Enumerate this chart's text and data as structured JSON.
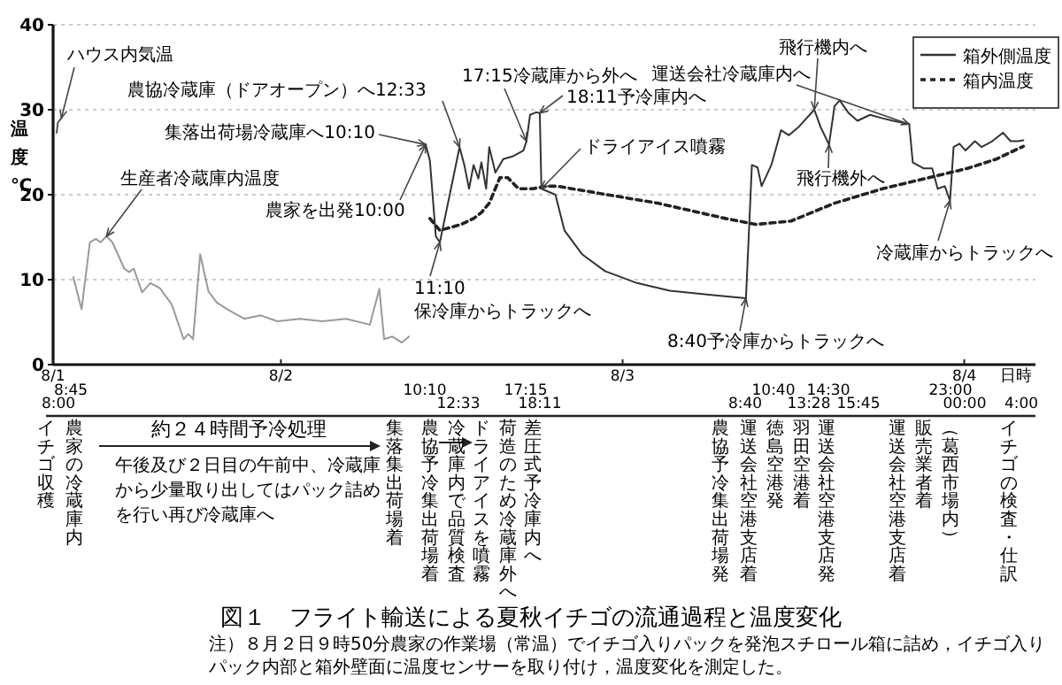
{
  "chart_data": {
    "type": "line",
    "title": "図１　フライト輸送による夏秋イチゴの流通過程と温度変化",
    "xlabel": "日時",
    "ylabel": "温度℃",
    "xlim": [
      "--08-01T08:00",
      "--08-04T05:00"
    ],
    "ylim": [
      0,
      40
    ],
    "yticks": [
      0,
      10,
      20,
      30,
      40
    ],
    "xticks": [
      {
        "value": "--08-01T08:00",
        "label": "8/1"
      },
      {
        "value": "--08-02T00:00",
        "label": "8/2"
      },
      {
        "value": "--08-03T00:00",
        "label": "8/3"
      },
      {
        "value": "--08-04T00:00",
        "label": "8/4"
      }
    ],
    "grid": "y",
    "legend": "top right",
    "series": [
      {
        "name": "箱外側温度",
        "color": "#333333",
        "line_style": "solid",
        "x": [
          "--08-02T10:10",
          "--08-02T10:28",
          "--08-02T10:53",
          "--08-02T11:10",
          "--08-02T12:33",
          "--08-02T12:53",
          "--08-02T13:13",
          "--08-02T13:32",
          "--08-02T13:52",
          "--08-02T14:05",
          "--08-02T14:25",
          "--08-02T14:38",
          "--08-02T15:04",
          "--08-02T15:37",
          "--08-02T16:16",
          "--08-02T17:02",
          "--08-02T17:15",
          "--08-02T17:30",
          "--08-02T17:56",
          "--08-02T18:11",
          "--08-02T18:18",
          "--08-02T19:17",
          "--08-02T19:55",
          "--08-02T21:09",
          "--08-02T22:46",
          "--08-03T01:01",
          "--08-03T03:19",
          "--08-03T06:13",
          "--08-03T08:40",
          "--08-03T09:05",
          "--08-03T09:29",
          "--08-03T09:46",
          "--08-03T10:27",
          "--08-03T11:08",
          "--08-03T11:41",
          "--08-03T12:23",
          "--08-03T13:28",
          "--08-03T13:54",
          "--08-03T14:30",
          "--08-03T14:53",
          "--08-03T15:15",
          "--08-03T15:53",
          "--08-03T16:30",
          "--08-03T17:23",
          "--08-03T18:15",
          "--08-03T19:00",
          "--08-03T20:08",
          "--08-03T20:23",
          "--08-03T21:08",
          "--08-03T21:45",
          "--08-03T22:08",
          "--08-03T22:38",
          "--08-03T23:00",
          "--08-03T23:15",
          "--08-03T23:40",
          "--08-04T00:05",
          "--08-04T00:45",
          "--08-04T01:13",
          "--08-04T01:58",
          "--08-04T02:43",
          "--08-04T03:15",
          "--08-04T03:47",
          "--08-04T04:09"
        ],
        "values": [
          25.9,
          24,
          15.1,
          14.4,
          25.6,
          23.5,
          20.7,
          23.5,
          21.9,
          23.8,
          20.7,
          25.6,
          22.6,
          24.2,
          24.5,
          25.2,
          26.3,
          29.4,
          29.7,
          29.6,
          20.7,
          20,
          15.8,
          13,
          11,
          9.6,
          8.7,
          8.2,
          7.8,
          23.5,
          23.2,
          21,
          23.5,
          27.6,
          27,
          28,
          30,
          28,
          25.9,
          30.4,
          31.1,
          29.6,
          28.7,
          29.4,
          29,
          28.7,
          28.3,
          23.8,
          23.1,
          23.1,
          20.7,
          21,
          19.3,
          25.6,
          26,
          25.2,
          26.3,
          25.6,
          26.3,
          27.3,
          26.3,
          26.3,
          26.4
        ]
      },
      {
        "name": "箱内温度",
        "color": "#222222",
        "line_style": "dashed",
        "x": [
          "--08-02T10:28",
          "--08-02T11:10",
          "--08-02T12:40",
          "--08-02T13:32",
          "--08-02T14:05",
          "--08-02T14:38",
          "--08-02T15:23",
          "--08-02T15:56",
          "--08-02T16:42",
          "--08-02T17:40",
          "--08-02T18:41",
          "--08-02T19:25",
          "--08-02T21:53",
          "--08-03T02:28",
          "--08-03T07:14",
          "--08-03T09:22",
          "--08-03T11:50",
          "--08-03T14:53",
          "--08-03T18:15",
          "--08-03T21:30",
          "--08-04T00:14",
          "--08-04T02:16",
          "--08-04T04:09"
        ],
        "values": [
          17.2,
          15.8,
          16.5,
          17.2,
          17.9,
          19,
          22,
          22,
          20.7,
          20.7,
          21,
          21,
          20.3,
          19,
          17.2,
          16.5,
          16.9,
          19,
          20.7,
          22,
          23.1,
          24.2,
          25.7
        ]
      },
      {
        "color": "#9a9a9a",
        "line_style": "solid",
        "x": [
          "--08-01T09:25",
          "--08-01T10:00",
          "--08-01T10:35",
          "--08-01T11:00",
          "--08-01T11:20",
          "--08-01T11:45",
          "--08-01T12:10",
          "--08-01T13:00",
          "--08-01T13:20",
          "--08-01T13:40",
          "--08-01T14:15",
          "--08-01T14:50",
          "--08-01T15:30",
          "--08-01T16:20",
          "--08-01T17:10",
          "--08-01T17:30",
          "--08-01T17:50",
          "--08-01T18:20",
          "--08-01T18:55",
          "--08-01T19:30",
          "--08-01T20:15",
          "--08-01T21:25",
          "--08-01T22:35",
          "--08-01T23:45",
          "--08-02T01:20",
          "--08-02T02:55",
          "--08-02T04:35",
          "--08-02T06:15",
          "--08-02T06:55",
          "--08-02T07:15",
          "--08-02T07:50",
          "--08-02T08:30",
          "--08-02T09:00"
        ],
        "values": [
          10.3,
          6.5,
          14.4,
          14.8,
          14.4,
          15.1,
          14.4,
          11.3,
          10.9,
          11.3,
          8.5,
          9.6,
          9,
          7.1,
          3,
          3.6,
          3,
          13,
          8.6,
          7.3,
          6.5,
          5.4,
          5.8,
          5.1,
          5.4,
          5.1,
          5.4,
          4.7,
          8.9,
          3,
          3.3,
          2.6,
          3.3
        ]
      },
      {
        "color": "#555555",
        "line_style": "solid",
        "x": [
          "--08-01T08:15",
          "--08-01T08:20",
          "--08-01T08:35"
        ],
        "values": [
          27.3,
          28.5,
          29
        ]
      }
    ],
    "annotations": [
      {
        "text": "ハウス内気温",
        "x": "--08-01T08:35",
        "y": 29
      },
      {
        "text": "生産者冷蔵庫内温度",
        "x": "--08-01T11:45",
        "y": 15.1
      },
      {
        "text": "集落出荷場冷蔵庫へ10:10",
        "x": "--08-02T10:10",
        "y": 25.9
      },
      {
        "text": "農協冷蔵庫（ドアオープン）へ12:33",
        "x": "--08-02T12:33",
        "y": 25.6
      },
      {
        "text": "農家を出発10:00",
        "x": "--08-02T10:10",
        "y": 25.9
      },
      {
        "text": "11:10\n保冷庫からトラックへ",
        "x": "--08-02T11:10",
        "y": 14.4
      },
      {
        "text": "17:15冷蔵庫から外へ",
        "x": "--08-02T17:15",
        "y": 26.3
      },
      {
        "text": "18:11予冷庫内へ",
        "x": "--08-02T18:11",
        "y": 29.6
      },
      {
        "text": "ドライアイス噴霧",
        "x": "--08-02T18:18",
        "y": 20.7
      },
      {
        "text": "8:40予冷庫からトラックへ",
        "x": "--08-03T08:40",
        "y": 7.8
      },
      {
        "text": "飛行機内へ",
        "x": "--08-03T13:28",
        "y": 30
      },
      {
        "text": "飛行機外へ",
        "x": "--08-03T14:30",
        "y": 25.9
      },
      {
        "text": "運送会社冷蔵庫内へ",
        "x": "--08-03T20:08",
        "y": 28.3
      },
      {
        "text": "冷蔵庫からトラックへ",
        "x": "--08-03T23:00",
        "y": 19.3
      },
      "8:45",
      "10:10",
      "17:15",
      "10:40",
      "14:30",
      "23:00",
      "8:00",
      "12:33",
      "18:11",
      "8:40",
      "13:28",
      "15:45",
      "00:00",
      "4:00",
      "イチゴ収穫",
      "農家の冷蔵庫内",
      "約２４時間予冷処理",
      "午後及び２日目の午前中、冷蔵庫から少量取り出してはパック詰めを行い再び冷蔵庫へ",
      "集落集出荷場着",
      "農協予冷集出荷場着",
      "冷蔵庫内で品質検査",
      "ドライアイスを噴霧",
      "荷造のため冷蔵庫外へ",
      "差圧式予冷庫内へ",
      "農協予冷集出荷場発",
      "運送会社空港支店着",
      "徳島空港発",
      "羽田空港着",
      "運送会社空港支店発",
      "運送会社空港支店着",
      "販売業者着",
      "（葛西市場内）",
      "イチゴの検査・仕訳",
      "注）８月２日９時50分農家の作業場（常温）でイチゴ入りパックを発泡スチロール箱に詰め，イチゴ入りパック内部と箱外壁面に温度センサーを取り付け，温度変化を測定した。"
    ]
  }
}
